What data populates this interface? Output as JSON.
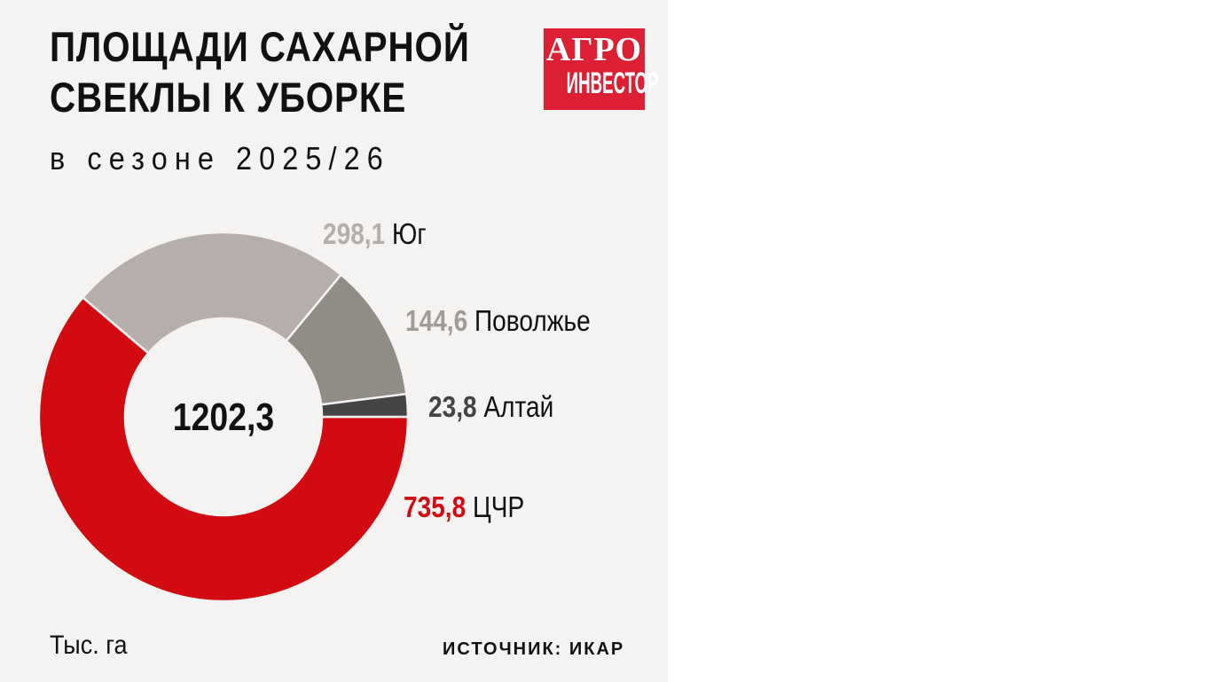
{
  "title_line1": "ПЛОЩАДИ САХАРНОЙ",
  "title_line2": "СВЕКЛЫ К УБОРКЕ",
  "subtitle": "в сезоне 2025/26",
  "logo": {
    "line1": "АГРО",
    "line2": "ИНВЕСТОР",
    "color": "#dc1f32"
  },
  "unit": "Тыс. га",
  "source": "ИСТОЧНИК: ИКАР",
  "chart_data": {
    "type": "pie",
    "variant": "donut",
    "total_label": "1202,3",
    "slices": [
      {
        "name": "ЦЧР",
        "value": 735.8,
        "label": "735,8",
        "color": "#d20b12",
        "label_color": "#d20b12"
      },
      {
        "name": "Юг",
        "value": 298.1,
        "label": "298,1",
        "color": "#b5aeaa",
        "label_color": "#b5aeaa"
      },
      {
        "name": "Поволжье",
        "value": 144.6,
        "label": "144,6",
        "color": "#918c86",
        "label_color": "#a09b96"
      },
      {
        "name": "Алтай",
        "value": 23.8,
        "label": "23,8",
        "color": "#444444",
        "label_color": "#444444"
      }
    ]
  }
}
